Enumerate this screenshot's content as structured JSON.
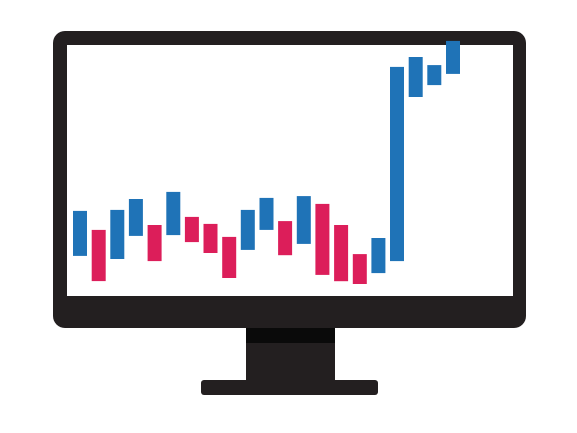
{
  "illustration": {
    "subject": "desktop-monitor-candlestick-chart",
    "icon": "monitor-icon"
  },
  "colors": {
    "frame": "#231f20",
    "screen": "#ffffff",
    "chin_shadow": "#0a0a0a",
    "up": "#1f73b7",
    "down": "#dc1e5a"
  },
  "chart_data": {
    "type": "bar",
    "subtype": "candlestick-bodies",
    "ylim": [
      0,
      100
    ],
    "grid": false,
    "bars": [
      {
        "low": 13.5,
        "high": 30.8,
        "dir": "up"
      },
      {
        "low": 3.8,
        "high": 23.5,
        "dir": "down"
      },
      {
        "low": 12.3,
        "high": 31.2,
        "dir": "up"
      },
      {
        "low": 21.2,
        "high": 35.4,
        "dir": "up"
      },
      {
        "low": 11.5,
        "high": 25.4,
        "dir": "down"
      },
      {
        "low": 21.5,
        "high": 38.1,
        "dir": "up"
      },
      {
        "low": 18.8,
        "high": 28.5,
        "dir": "down"
      },
      {
        "low": 14.6,
        "high": 25.8,
        "dir": "down"
      },
      {
        "low": 5.0,
        "high": 20.8,
        "dir": "down"
      },
      {
        "low": 15.8,
        "high": 31.2,
        "dir": "up"
      },
      {
        "low": 23.5,
        "high": 35.8,
        "dir": "up"
      },
      {
        "low": 13.8,
        "high": 26.9,
        "dir": "down"
      },
      {
        "low": 18.1,
        "high": 36.5,
        "dir": "up"
      },
      {
        "low": 6.2,
        "high": 33.5,
        "dir": "down"
      },
      {
        "low": 3.8,
        "high": 25.4,
        "dir": "down"
      },
      {
        "low": 2.7,
        "high": 14.2,
        "dir": "down"
      },
      {
        "low": 6.9,
        "high": 20.4,
        "dir": "up"
      },
      {
        "low": 11.5,
        "high": 86.2,
        "dir": "up"
      },
      {
        "low": 74.6,
        "high": 90.0,
        "dir": "up"
      },
      {
        "low": 79.2,
        "high": 86.9,
        "dir": "up"
      },
      {
        "low": 83.5,
        "high": 96.2,
        "dir": "up"
      }
    ]
  }
}
